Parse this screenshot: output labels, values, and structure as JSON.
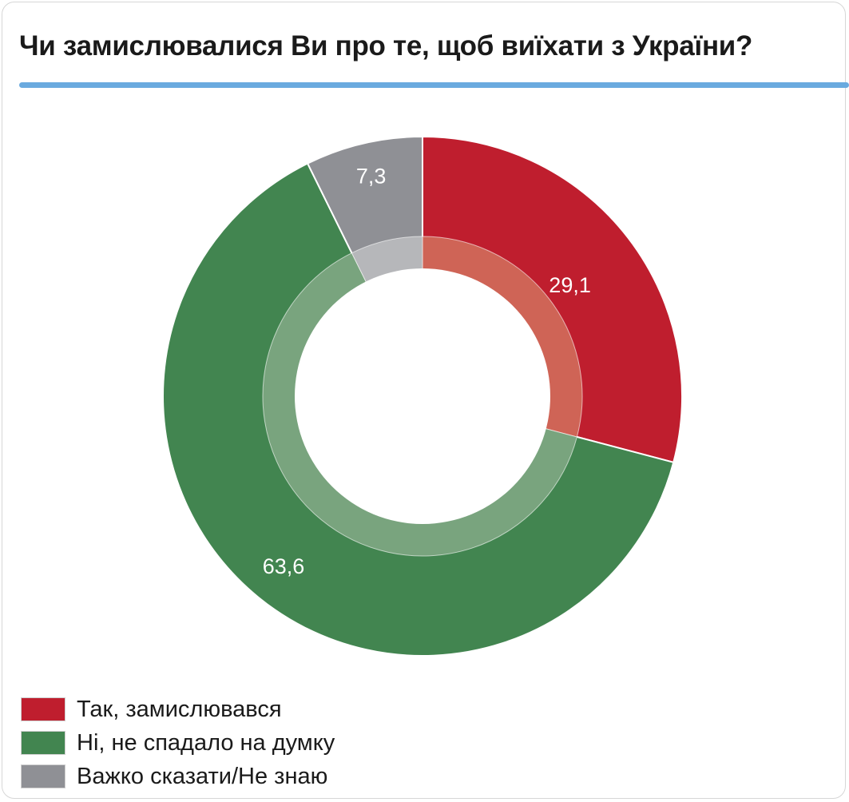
{
  "title": "Чи замислювалися Ви про те, щоб виїхати з України?",
  "colors": {
    "accent_rule": "#6aaadf",
    "border": "#d6d6d6"
  },
  "chart_data": {
    "type": "pie",
    "variant": "donut",
    "start": "12 o'clock, clockwise",
    "slices": [
      {
        "label": "Так, замислювався",
        "value": 29.1,
        "value_label": "29,1",
        "color": "#bf1e2e",
        "inner_ring_color": "#cf6456"
      },
      {
        "label": "Ні, не спадало на думку",
        "value": 63.6,
        "value_label": "63,6",
        "color": "#428550",
        "inner_ring_color": "#79a47e"
      },
      {
        "label": "Важко сказати/Не знаю",
        "value": 7.3,
        "value_label": "7,3",
        "color": "#8f9095",
        "inner_ring_color": "#b6b7ba"
      }
    ],
    "legend": {
      "position": "bottom-left",
      "items": [
        {
          "label": "Так, замислювався",
          "color": "#bf1e2e"
        },
        {
          "label": "Ні, не спадало на думку",
          "color": "#428550"
        },
        {
          "label": "Важко сказати/Не знаю",
          "color": "#8f9095"
        }
      ]
    }
  }
}
